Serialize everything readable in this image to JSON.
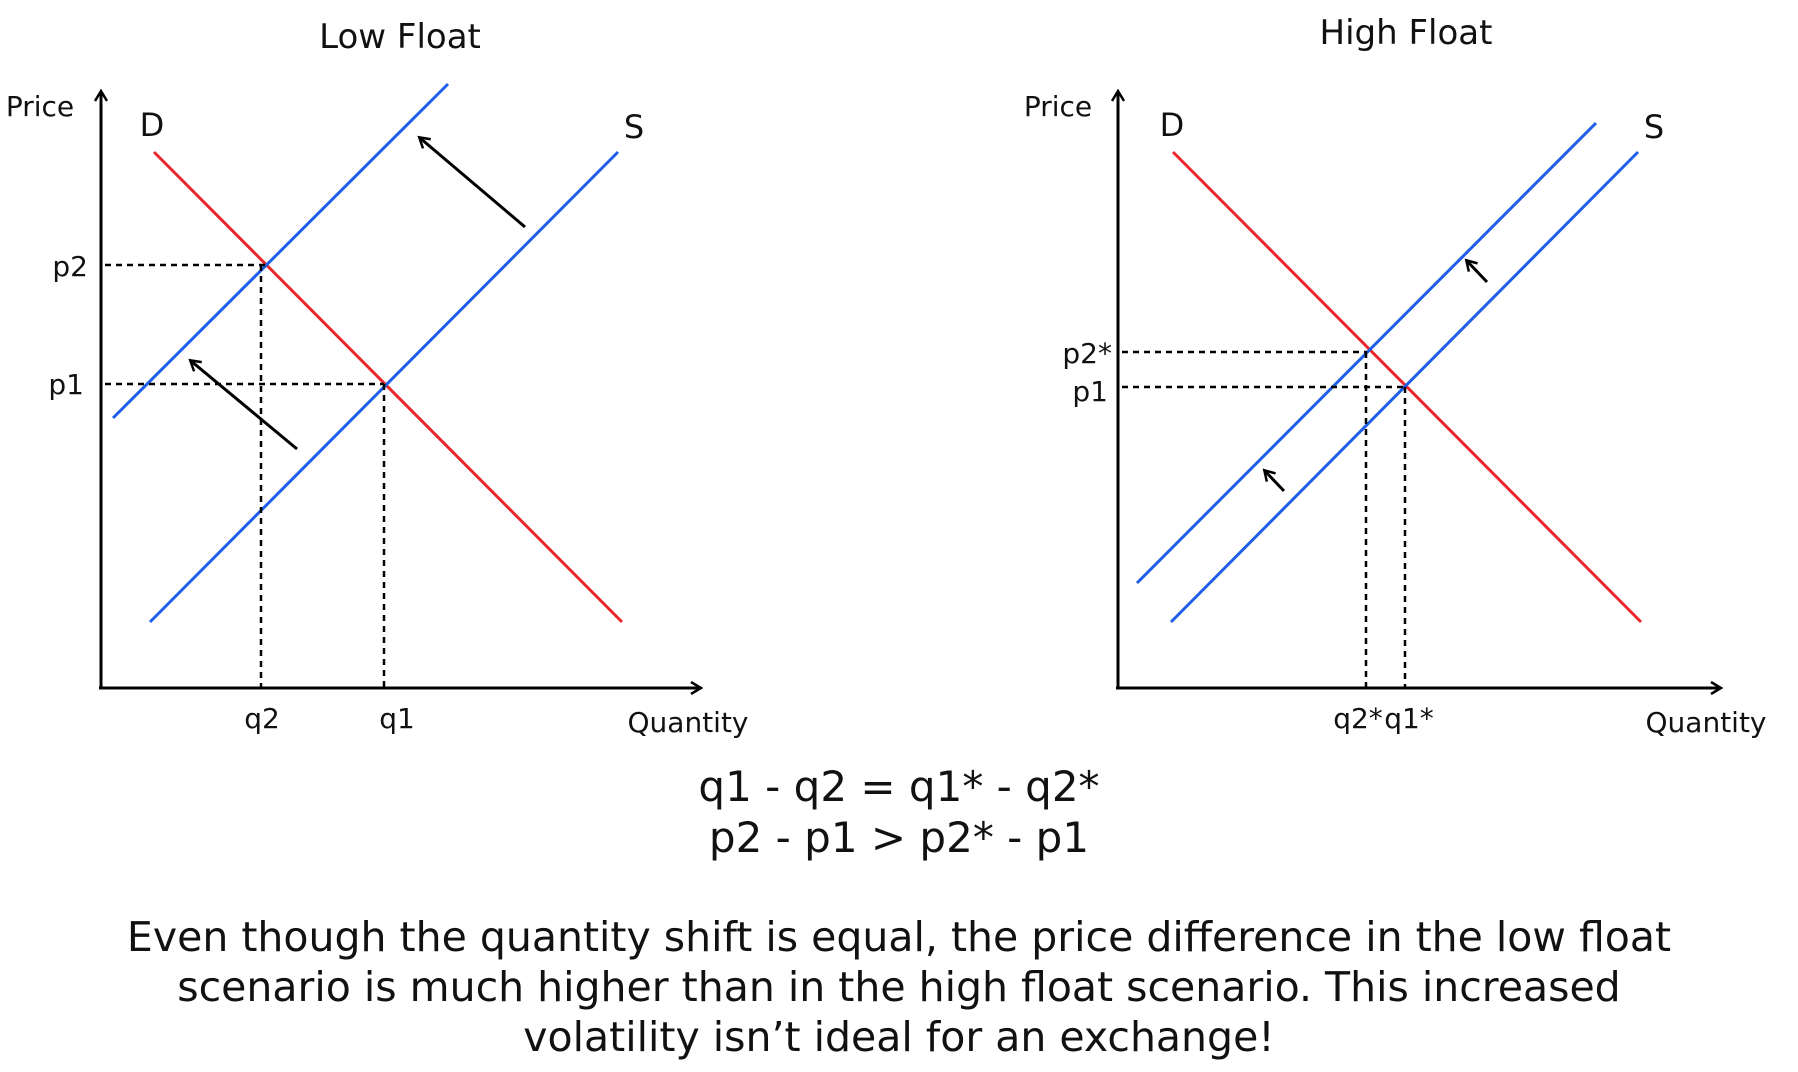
{
  "colors": {
    "demand": "#e8262b",
    "supply": "#1f5ee8",
    "ink": "#000000"
  },
  "panels": [
    {
      "title": "Low Float",
      "y_axis_label": "Price",
      "x_axis_label": "Quantity",
      "demand_label": "D",
      "supply_label": "S",
      "ticks": {
        "q_new": "q2",
        "q_old": "q1",
        "p_new": "p2",
        "p_old": "p1"
      }
    },
    {
      "title": "High Float",
      "y_axis_label": "Price",
      "x_axis_label": "Quantity",
      "demand_label": "D",
      "supply_label": "S",
      "ticks": {
        "q_new": "q2*",
        "q_old": "q1*",
        "p_new": "p2*",
        "p_old": "p1"
      }
    }
  ],
  "equations": [
    "q1 - q2 = q1* - q2*",
    "p2 - p1 > p2* - p1"
  ],
  "caption": "Even though the quantity shift is equal, the price difference in the low float scenario is much higher than in the high float scenario. This increased volatility isn’t ideal for an exchange!"
}
